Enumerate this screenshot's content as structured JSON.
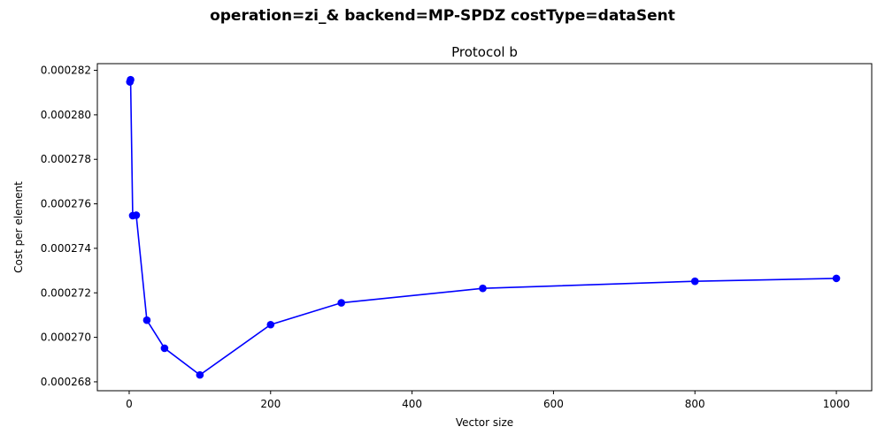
{
  "chart_data": {
    "type": "line",
    "suptitle": "operation=zi_& backend=MP-SPDZ costType=dataSent",
    "title": "Protocol b",
    "xlabel": "Vector size",
    "ylabel": "Cost per element",
    "xlim": [
      -45,
      1050
    ],
    "ylim": [
      0.0002676,
      0.0002823
    ],
    "x_ticks": [
      0,
      200,
      400,
      600,
      800,
      1000
    ],
    "x_tick_labels": [
      "0",
      "200",
      "400",
      "600",
      "800",
      "1000"
    ],
    "y_ticks": [
      0.000268,
      0.00027,
      0.000272,
      0.000274,
      0.000276,
      0.000278,
      0.00028,
      0.000282
    ],
    "y_tick_labels": [
      "0.000268",
      "0.000270",
      "0.000272",
      "0.000274",
      "0.000276",
      "0.000278",
      "0.000280",
      "0.000282"
    ],
    "grid": false,
    "series": [
      {
        "color": "#0000ff",
        "marker": "circle",
        "x": [
          1,
          2,
          5,
          10,
          25,
          50,
          100,
          200,
          300,
          500,
          800,
          1000
        ],
        "y": [
          0.00028148,
          0.00028158,
          0.00027547,
          0.00027549,
          0.00027077,
          0.00026951,
          0.00026831,
          0.00027057,
          0.00027155,
          0.0002722,
          0.00027252,
          0.00027265
        ]
      }
    ]
  }
}
